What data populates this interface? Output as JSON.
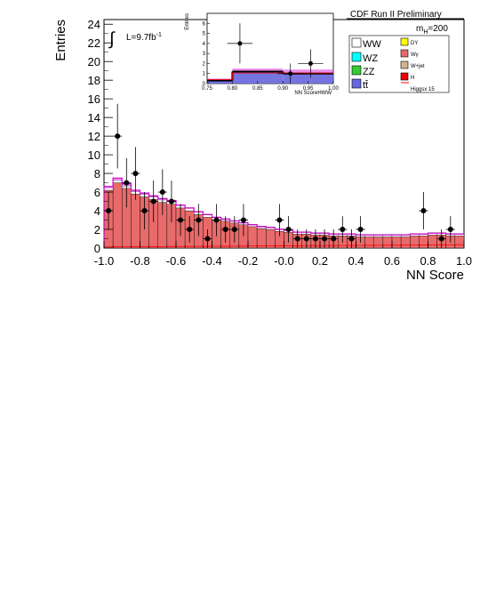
{
  "chart_data": {
    "type": "bar",
    "title": "CDF Run II Preliminary",
    "mass_label": "m",
    "mass_sub": "H",
    "mass_value": "=200",
    "lumi_label": "L=9.7fb",
    "lumi_exp": "-1",
    "xlabel": "NN Score",
    "ylabel": "Entries",
    "xlim": [
      -1.0,
      1.0
    ],
    "ylim": [
      0,
      24.5
    ],
    "x_ticks": [
      "-1.0",
      "-0.8",
      "-0.6",
      "-0.4",
      "-0.2",
      "-0.0",
      "0.2",
      "0.4",
      "0.6",
      "0.8",
      "1.0"
    ],
    "y_ticks": [
      "0",
      "2",
      "4",
      "6",
      "8",
      "10",
      "12",
      "14",
      "16",
      "18",
      "20",
      "22",
      "24"
    ],
    "bins": 40,
    "background_total": [
      6.2,
      7.0,
      6.4,
      5.8,
      5.5,
      5.2,
      4.9,
      4.7,
      4.3,
      4.0,
      3.6,
      3.3,
      3.0,
      2.9,
      2.7,
      2.5,
      2.3,
      2.1,
      2.0,
      1.8,
      1.7,
      1.5,
      1.5,
      1.4,
      1.4,
      1.3,
      1.3,
      1.3,
      1.2,
      1.2,
      1.2,
      1.2,
      1.2,
      1.2,
      1.3,
      1.3,
      1.4,
      1.4,
      1.3,
      1.3
    ],
    "signal_higgs_x15": [
      6.6,
      7.5,
      6.9,
      6.2,
      5.9,
      5.6,
      5.3,
      5.1,
      4.6,
      4.3,
      3.9,
      3.6,
      3.3,
      3.1,
      2.9,
      2.7,
      2.5,
      2.3,
      2.2,
      2.0,
      1.9,
      1.7,
      1.7,
      1.6,
      1.6,
      1.5,
      1.5,
      1.5,
      1.4,
      1.4,
      1.4,
      1.4,
      1.4,
      1.4,
      1.5,
      1.5,
      1.6,
      1.6,
      1.5,
      1.5
    ],
    "data_points": {
      "x": [
        -0.975,
        -0.925,
        -0.875,
        -0.825,
        -0.775,
        -0.725,
        -0.675,
        -0.625,
        -0.575,
        -0.525,
        -0.475,
        -0.425,
        -0.375,
        -0.325,
        -0.275,
        -0.225,
        -0.025,
        0.025,
        0.075,
        0.125,
        0.175,
        0.225,
        0.275,
        0.325,
        0.375,
        0.425,
        0.775,
        0.875,
        0.925
      ],
      "y": [
        4,
        12,
        7,
        8,
        4,
        5,
        6,
        5,
        3,
        2,
        3,
        1,
        3,
        2,
        2,
        3,
        3,
        2,
        1,
        1,
        1,
        1,
        1,
        2,
        1,
        2,
        4,
        1,
        2
      ]
    },
    "legend": [
      {
        "name": "WW",
        "color": "#ffffff"
      },
      {
        "name": "DY",
        "color": "#ffff00"
      },
      {
        "name": "WZ",
        "color": "#00ffff"
      },
      {
        "name": "Wγ",
        "color": "#e86a6a"
      },
      {
        "name": "ZZ",
        "color": "#33cc33"
      },
      {
        "name": "W+jet",
        "color": "#d2b48c"
      },
      {
        "name": "tt̄",
        "color": "#6666dd"
      },
      {
        "name": "H",
        "color": "#ee0000"
      },
      {
        "name": "Higgsx 15",
        "color": "#ff0000"
      }
    ],
    "inset": {
      "xlabel": "NN ScoreHWW",
      "ylabel": "Entries",
      "xlim": [
        0.75,
        1.0
      ],
      "ylim": [
        0,
        7
      ],
      "x_ticks": [
        "0.75",
        "0.80",
        "0.85",
        "0.90",
        "0.95",
        "1.00"
      ],
      "y_ticks": [
        "0",
        "1",
        "2",
        "3",
        "4",
        "5",
        "6"
      ],
      "bin_edges": [
        0.75,
        0.8,
        0.9,
        1.0
      ],
      "background_total": [
        0.3,
        1.2,
        1.0
      ],
      "signal_higgs_x15": [
        0.5,
        1.5,
        1.4
      ],
      "data_points": {
        "x": [
          0.815,
          0.915,
          0.955
        ],
        "y": [
          4,
          1,
          2
        ]
      }
    }
  }
}
